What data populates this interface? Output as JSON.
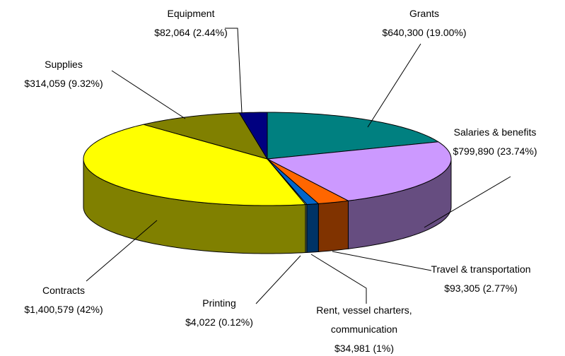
{
  "chart_data": {
    "type": "pie3d",
    "categories": [
      "Grants",
      "Salaries & benefits",
      "Travel & transportation",
      "Rent, vessel charters, communication",
      "Printing",
      "Contracts",
      "Supplies",
      "Equipment"
    ],
    "values": [
      640300,
      799890,
      93305,
      34981,
      4022,
      1400579,
      314059,
      82064
    ],
    "value_labels": [
      "$640,300 (19.00%)",
      "$799,890 (23.74%)",
      "$93,305 (2.77%)",
      "$34,981 (1%)",
      "$4,022 (0.12%)",
      "$1,400,579 (42%)",
      "$314,059 (9.32%)",
      "$82,064 (2.44%)"
    ],
    "colors": [
      "#008080",
      "#cc99ff",
      "#ff6600",
      "#0066cc",
      "#ccffcc",
      "#ffff00",
      "#808000",
      "#000080"
    ]
  }
}
